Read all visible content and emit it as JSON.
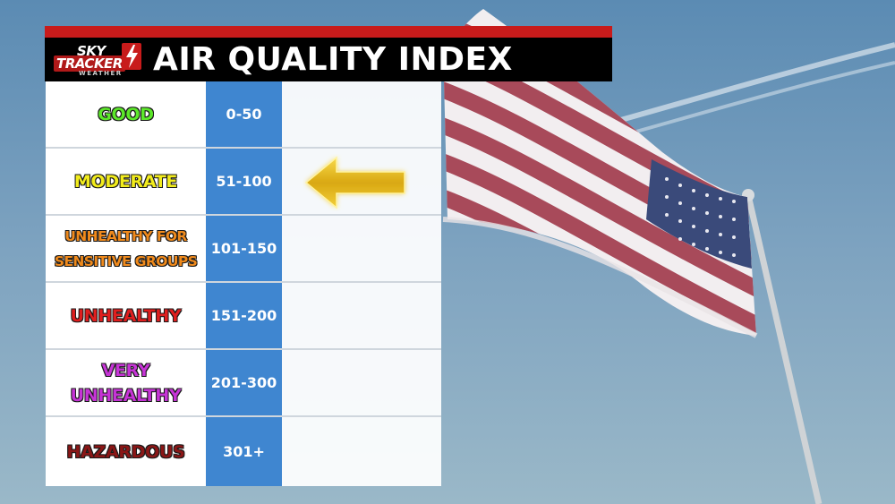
{
  "branding": {
    "logo_line1": "SKY",
    "logo_line2": "TRACKER",
    "logo_line3": "WEATHER"
  },
  "header": {
    "title": "AIR QUALITY INDEX"
  },
  "aqi_levels": [
    {
      "name": "GOOD",
      "range": "0-50",
      "color": "#5ce82a"
    },
    {
      "name": "MODERATE",
      "range": "51-100",
      "color": "#f2ec1c",
      "indicated": true
    },
    {
      "name": "UNHEALTHY FOR SENSITIVE GROUPS",
      "name_line1": "UNHEALTHY FOR",
      "name_line2": "SENSITIVE GROUPS",
      "range": "101-150",
      "color": "#f08a1c"
    },
    {
      "name": "UNHEALTHY",
      "range": "151-200",
      "color": "#e01e1e"
    },
    {
      "name": "VERY UNHEALTHY",
      "name_line1": "VERY",
      "name_line2": "UNHEALTHY",
      "range": "201-300",
      "color": "#c634d6"
    },
    {
      "name": "HAZARDOUS",
      "range": "301+",
      "color": "#8a1616"
    }
  ],
  "indicator": {
    "icon": "arrow-left-icon",
    "color": "#e8c21a",
    "points_to": "MODERATE"
  },
  "colors": {
    "header_bg": "#000000",
    "header_accent": "#c81b1b",
    "range_column": "#3f86d0"
  }
}
